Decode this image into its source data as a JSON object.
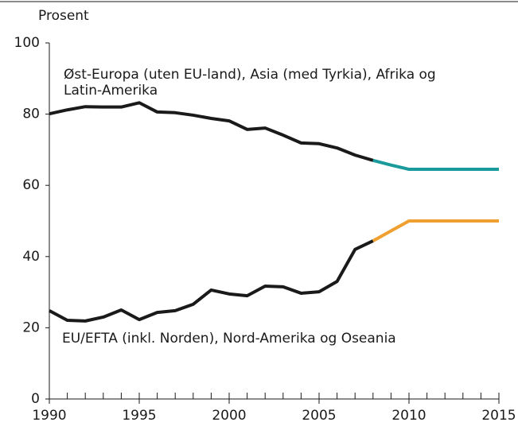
{
  "chart_data": {
    "type": "line",
    "y_label": "Prosent",
    "annotations": [
      "Øst-Europa (uten EU-land), Asia (med Tyrkia), Afrika og",
      "Latin-Amerika",
      "EU/EFTA (inkl. Norden), Nord-Amerika og Oseania"
    ],
    "x": [
      1990,
      1991,
      1992,
      1993,
      1994,
      1995,
      1996,
      1997,
      1998,
      1999,
      2000,
      2001,
      2002,
      2003,
      2004,
      2005,
      2006,
      2007,
      2008,
      2009,
      2010,
      2011,
      2012,
      2013,
      2014,
      2015
    ],
    "series": [
      {
        "name": "Øst-Europa (uten EU-land), Asia (med Tyrkia), Afrika og Latin-Amerika",
        "color": "#1a1a1a",
        "values": [
          80.1,
          81.2,
          82.1,
          82,
          82,
          83.2,
          80.6,
          80.4,
          79.7,
          78.8,
          78.1,
          75.7,
          76.1,
          74.1,
          71.9,
          71.7,
          70.5,
          68.5,
          67,
          null,
          null,
          null,
          null,
          null,
          null,
          null
        ]
      },
      {
        "color": "#1a9a9a",
        "values": [
          null,
          null,
          null,
          null,
          null,
          null,
          null,
          null,
          null,
          null,
          null,
          null,
          null,
          null,
          null,
          null,
          null,
          null,
          67,
          65.7,
          64.5,
          64.5,
          64.5,
          64.5,
          64.5,
          64.5
        ]
      },
      {
        "name": "EU/EFTA (inkl. Norden), Nord-Amerika og Oseania",
        "color": "#1a1a1a",
        "values": [
          24.8,
          22.1,
          21.9,
          23,
          25,
          22.3,
          24.3,
          24.8,
          26.6,
          30.6,
          29.5,
          29,
          31.7,
          31.5,
          29.7,
          30.1,
          33,
          42,
          44.4,
          null,
          null,
          null,
          null,
          null,
          null,
          null
        ]
      },
      {
        "color": "#f0a030",
        "values": [
          null,
          null,
          null,
          null,
          null,
          null,
          null,
          null,
          null,
          null,
          null,
          null,
          null,
          null,
          null,
          null,
          null,
          null,
          44.4,
          47.2,
          50,
          50,
          50,
          50,
          50,
          50
        ]
      }
    ],
    "xlim": [
      1990,
      2015
    ],
    "xticks": [
      1990,
      1995,
      2000,
      2005,
      2010,
      2015
    ],
    "ylim": [
      0,
      100
    ],
    "yticks": [
      0,
      20,
      40,
      60,
      80,
      100
    ],
    "grid": false
  }
}
